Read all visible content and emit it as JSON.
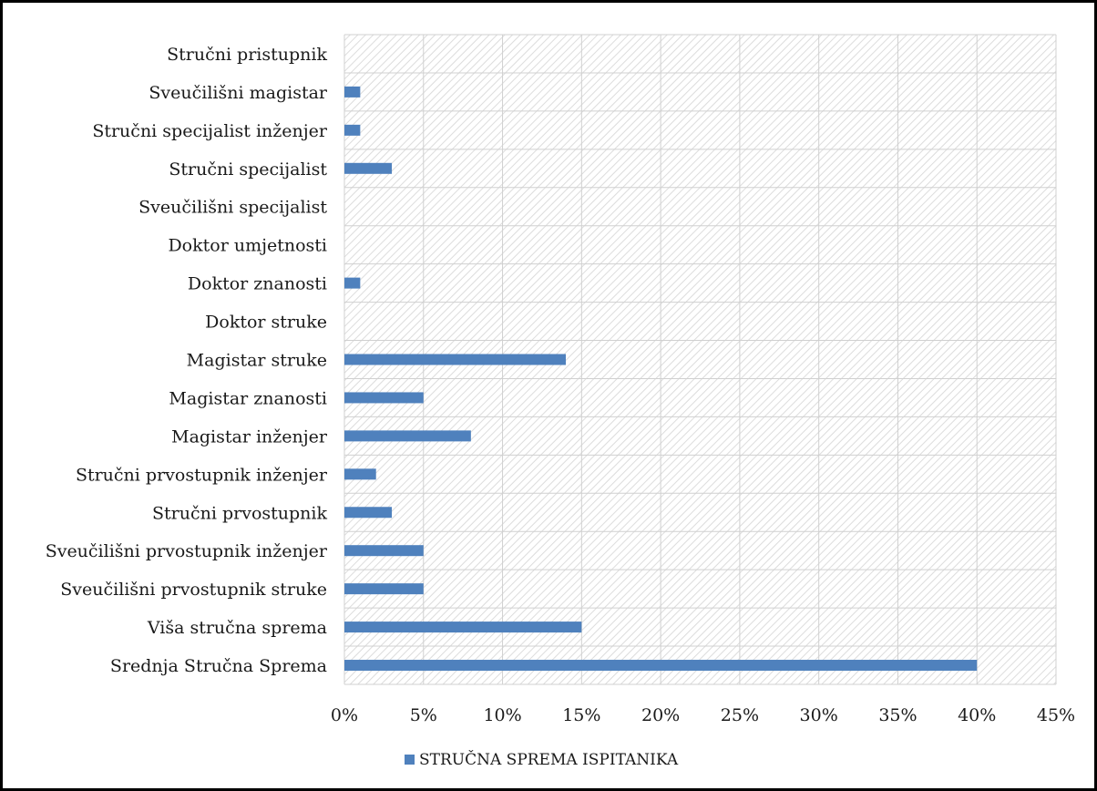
{
  "chart_data": {
    "type": "bar",
    "orientation": "horizontal",
    "title": "",
    "xlabel": "",
    "ylabel": "",
    "categories": [
      "Stručni pristupnik",
      "Sveučilišni magistar",
      "Stručni specijalist inženjer",
      "Stručni specijalist",
      "Sveučilišni specijalist",
      "Doktor umjetnosti",
      "Doktor znanosti",
      "Doktor struke",
      "Magistar struke",
      "Magistar znanosti",
      "Magistar inženjer",
      "Stručni prvostupnik  inženjer",
      "Stručni prvostupnik",
      "Sveučilišni prvostupnik inženjer",
      "Sveučilišni prvostupnik struke",
      "Viša stručna sprema",
      "Srednja Stručna Sprema"
    ],
    "series": [
      {
        "name": "STRUČNA SPREMA ISPITANIKA",
        "color": "#4f81bd",
        "values": [
          0,
          1,
          1,
          3,
          0,
          0,
          1,
          0,
          14,
          5,
          8,
          2,
          3,
          5,
          5,
          15,
          40
        ]
      }
    ],
    "xlim": [
      0,
      45
    ],
    "x_ticks": [
      "0%",
      "5%",
      "10%",
      "15%",
      "20%",
      "25%",
      "30%",
      "35%",
      "40%",
      "45%"
    ],
    "value_unit": "%",
    "grid": true,
    "plot_background": "hatched",
    "legend_position": "bottom"
  }
}
